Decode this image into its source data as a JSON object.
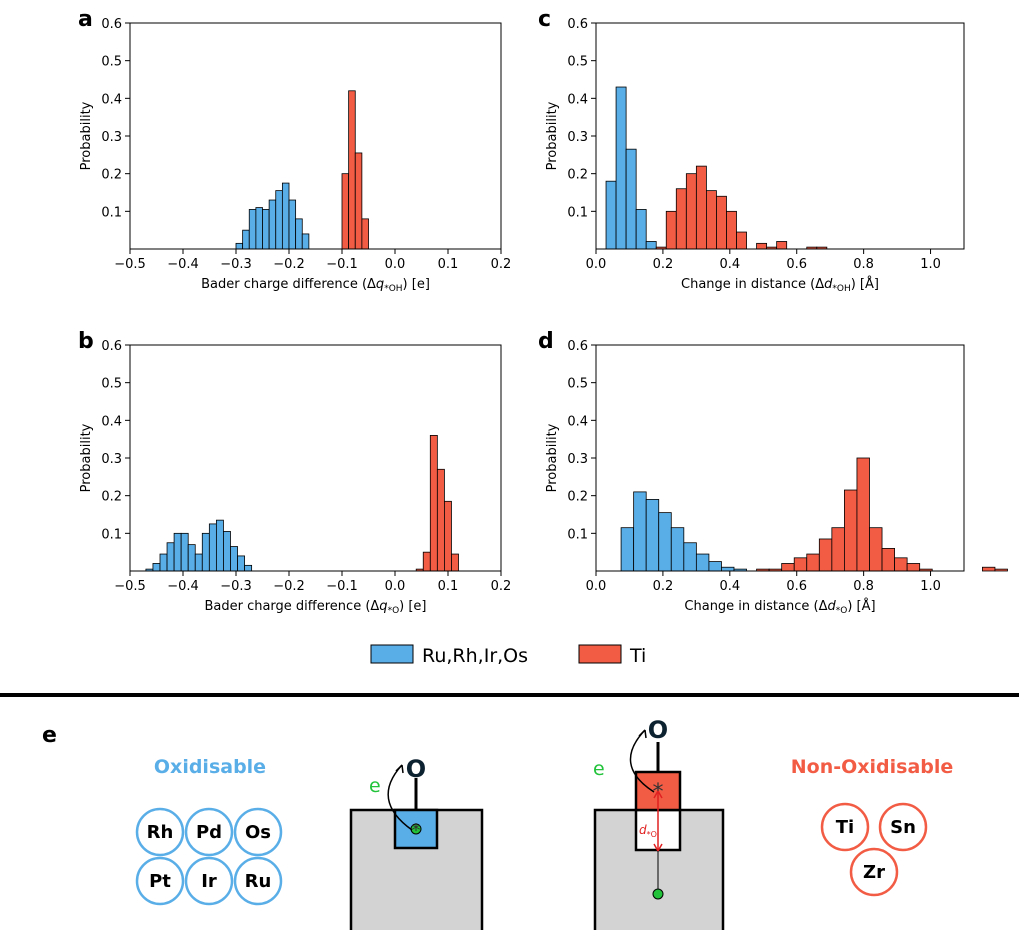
{
  "colors": {
    "ru_group": "#5aaee8",
    "ti": "#f25c45",
    "element_blue": "#5aaee8",
    "element_red": "#f25c45",
    "electron_green": "#22c33b",
    "support_gray": "#d3d3d3"
  },
  "chart_data": [
    {
      "panel": "a",
      "type": "bar",
      "xlabel_prefix": "Bader charge difference (Δ",
      "xlabel_var": "q",
      "xlabel_sub": "*OH",
      "xlabel_suffix": ") [e]",
      "ylabel": "Probability",
      "xlim": [
        -0.5,
        0.2
      ],
      "ylim": [
        0,
        0.6
      ],
      "xticks": [
        -0.5,
        -0.4,
        -0.3,
        -0.2,
        -0.1,
        0.0,
        0.1,
        0.2
      ],
      "xtick_labels": [
        "−0.5",
        "−0.4",
        "−0.3",
        "−0.2",
        "−0.1",
        "0.0",
        "0.1",
        "0.2"
      ],
      "yticks": [
        0.1,
        0.2,
        0.3,
        0.4,
        0.5,
        0.6
      ],
      "ytick_labels": [
        "0.1",
        "0.2",
        "0.3",
        "0.4",
        "0.5",
        "0.6"
      ],
      "series": [
        {
          "name": "Ru,Rh,Ir,Os",
          "color": "#5aaee8",
          "bin_start": -0.3,
          "bin_width": 0.0125,
          "values": [
            0.015,
            0.05,
            0.105,
            0.11,
            0.105,
            0.13,
            0.155,
            0.175,
            0.13,
            0.08,
            0.04
          ]
        },
        {
          "name": "Ti",
          "color": "#f25c45",
          "bin_start": -0.1,
          "bin_width": 0.0125,
          "values": [
            0.2,
            0.42,
            0.255,
            0.08
          ]
        }
      ]
    },
    {
      "panel": "c",
      "type": "bar",
      "xlabel_prefix": "Change in distance (Δ",
      "xlabel_var": "d",
      "xlabel_sub": "*OH",
      "xlabel_suffix": ") [Å]",
      "ylabel": "Probability",
      "xlim": [
        0.0,
        1.1
      ],
      "ylim": [
        0,
        0.6
      ],
      "xticks": [
        0.0,
        0.2,
        0.4,
        0.6,
        0.8,
        1.0
      ],
      "xtick_labels": [
        "0.0",
        "0.2",
        "0.4",
        "0.6",
        "0.8",
        "1.0"
      ],
      "yticks": [
        0.1,
        0.2,
        0.3,
        0.4,
        0.5,
        0.6
      ],
      "ytick_labels": [
        "0.1",
        "0.2",
        "0.3",
        "0.4",
        "0.5",
        "0.6"
      ],
      "series": [
        {
          "name": "Ru,Rh,Ir,Os",
          "color": "#5aaee8",
          "bin_start": 0.03,
          "bin_width": 0.03,
          "values": [
            0.18,
            0.43,
            0.265,
            0.105,
            0.02
          ]
        },
        {
          "name": "Ti",
          "color": "#f25c45",
          "bin_start": 0.18,
          "bin_width": 0.03,
          "values": [
            0.005,
            0.1,
            0.16,
            0.2,
            0.22,
            0.155,
            0.14,
            0.1,
            0.045,
            0.0,
            0.015,
            0.005,
            0.02,
            0.0,
            0.0,
            0.005,
            0.005
          ]
        }
      ]
    },
    {
      "panel": "b",
      "type": "bar",
      "xlabel_prefix": "Bader charge difference (Δ",
      "xlabel_var": "q",
      "xlabel_sub": "*O",
      "xlabel_suffix": ") [e]",
      "ylabel": "Probability",
      "xlim": [
        -0.5,
        0.2
      ],
      "ylim": [
        0,
        0.6
      ],
      "xticks": [
        -0.5,
        -0.4,
        -0.3,
        -0.2,
        -0.1,
        0.0,
        0.1,
        0.2
      ],
      "xtick_labels": [
        "−0.5",
        "−0.4",
        "−0.3",
        "−0.2",
        "−0.1",
        "0.0",
        "0.1",
        "0.2"
      ],
      "yticks": [
        0.1,
        0.2,
        0.3,
        0.4,
        0.5,
        0.6
      ],
      "ytick_labels": [
        "0.1",
        "0.2",
        "0.3",
        "0.4",
        "0.5",
        "0.6"
      ],
      "series": [
        {
          "name": "Ru,Rh,Ir,Os",
          "color": "#5aaee8",
          "bin_start": -0.47,
          "bin_width": 0.0133,
          "values": [
            0.005,
            0.02,
            0.045,
            0.075,
            0.1,
            0.1,
            0.07,
            0.045,
            0.1,
            0.125,
            0.135,
            0.105,
            0.065,
            0.04,
            0.015
          ]
        },
        {
          "name": "Ti",
          "color": "#f25c45",
          "bin_start": 0.04,
          "bin_width": 0.0133,
          "values": [
            0.005,
            0.05,
            0.36,
            0.27,
            0.185,
            0.045
          ]
        }
      ]
    },
    {
      "panel": "d",
      "type": "bar",
      "xlabel_prefix": "Change in distance (Δ",
      "xlabel_var": "d",
      "xlabel_sub": "*O",
      "xlabel_suffix": ") [Å]",
      "ylabel": "Probability",
      "xlim": [
        0.0,
        1.1
      ],
      "ylim": [
        0,
        0.6
      ],
      "xticks": [
        0.0,
        0.2,
        0.4,
        0.6,
        0.8,
        1.0
      ],
      "xtick_labels": [
        "0.0",
        "0.2",
        "0.4",
        "0.6",
        "0.8",
        "1.0"
      ],
      "yticks": [
        0.1,
        0.2,
        0.3,
        0.4,
        0.5,
        0.6
      ],
      "ytick_labels": [
        "0.1",
        "0.2",
        "0.3",
        "0.4",
        "0.5",
        "0.6"
      ],
      "series": [
        {
          "name": "Ru,Rh,Ir,Os",
          "color": "#5aaee8",
          "bin_start": 0.075,
          "bin_width": 0.0375,
          "values": [
            0.115,
            0.21,
            0.19,
            0.155,
            0.115,
            0.075,
            0.045,
            0.025,
            0.01,
            0.005
          ]
        },
        {
          "name": "Ti",
          "color": "#f25c45",
          "bin_start": 0.48,
          "bin_width": 0.0375,
          "values": [
            0.005,
            0.005,
            0.02,
            0.035,
            0.045,
            0.085,
            0.115,
            0.215,
            0.3,
            0.115,
            0.06,
            0.035,
            0.02,
            0.005,
            0.0,
            0.0,
            0.0,
            0.0,
            0.01,
            0.005
          ]
        }
      ]
    }
  ],
  "legend": [
    {
      "label": "Ru,Rh,Ir,Os",
      "color": "#5aaee8"
    },
    {
      "label": "Ti",
      "color": "#f25c45"
    }
  ],
  "schematic": {
    "panel_label": "e",
    "oxidisable_title": "Oxidisable",
    "oxidisable_elements": [
      "Rh",
      "Pd",
      "Os",
      "Pt",
      "Ir",
      "Ru"
    ],
    "non_oxidisable_title": "Non-Oxidisable",
    "non_oxidisable_elements": [
      "Ti",
      "Sn",
      "Zr"
    ],
    "oxygen_label": "O",
    "electron_label": "e",
    "distance_label_var": "d",
    "distance_label_sub": "*O"
  }
}
